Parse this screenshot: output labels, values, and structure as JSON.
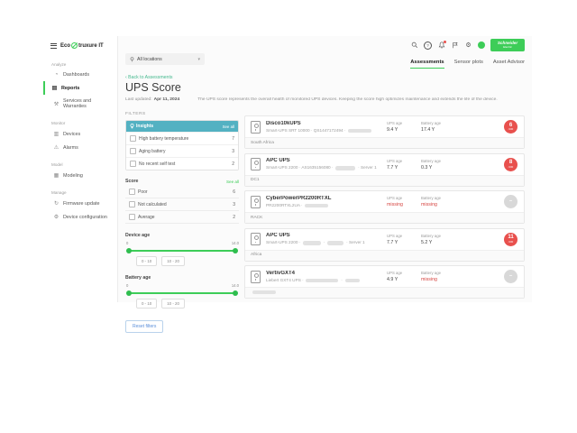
{
  "colors": {
    "accent": "#3dcd58",
    "insights_header": "#53b1c2",
    "badge_red": "#e8504d",
    "badge_gray": "#d8d8d8",
    "missing_text": "#d64541"
  },
  "brand": {
    "logo_pre": "Eco",
    "logo_post": "truxure IT",
    "vendor_line1": "Schneider",
    "vendor_line2": "Electric"
  },
  "sidebar": {
    "sections": [
      {
        "label": "Analyze",
        "items": [
          "Dashboards",
          "Reports",
          "Services and Warranties"
        ]
      },
      {
        "label": "Monitor",
        "items": [
          "Devices",
          "Alarms"
        ]
      },
      {
        "label": "Model",
        "items": [
          "Modeling"
        ]
      },
      {
        "label": "Manage",
        "items": [
          "Firmware update",
          "Device configuration"
        ]
      }
    ],
    "active_item": "Reports"
  },
  "topbar": {
    "location": "All locations",
    "icons": [
      "search-icon",
      "help-icon",
      "notifications-bell-icon",
      "feedback-icon",
      "settings-gear-icon",
      "avatar"
    ]
  },
  "tabs": [
    {
      "label": "Assessments",
      "active": true
    },
    {
      "label": "Sensor plots",
      "active": false
    },
    {
      "label": "Asset Advisor",
      "active": false
    }
  ],
  "page": {
    "back_link": "Back to Assessments",
    "title": "UPS Score",
    "last_updated_label": "Last updated:",
    "last_updated_value": "Apr 11, 2024",
    "description": "The UPS score represents the overall health of monitored UPS devices. Keeping the score high optimizes maintenance and extends the life of the device."
  },
  "filters": {
    "heading": "FILTERS",
    "see_all": "See all",
    "insights": {
      "title": "Insights",
      "items": [
        {
          "label": "High battery temperature",
          "count": "7"
        },
        {
          "label": "Aging battery",
          "count": "3"
        },
        {
          "label": "No recent self test",
          "count": "2"
        }
      ]
    },
    "score": {
      "title": "Score",
      "items": [
        {
          "label": "Poor",
          "count": "6"
        },
        {
          "label": "Not calculated",
          "count": "3"
        },
        {
          "label": "Average",
          "count": "2"
        }
      ]
    },
    "device_age": {
      "title": "Device age",
      "min": "0",
      "max": "14.0",
      "buttons": [
        "0 - 10",
        "10 - 20"
      ]
    },
    "battery_age": {
      "title": "Battery age",
      "min": "0",
      "max": "14.0",
      "buttons": [
        "0 - 10",
        "10 - 20"
      ]
    },
    "reset": "Reset filters"
  },
  "list": {
    "labels": {
      "ups_age": "UPS age",
      "battery_age": "Battery age"
    },
    "devices": [
      {
        "name": "Disco10kUPS",
        "subtitle_parts": [
          {
            "t": "Smart-UPS SRT 10000 · QS1447172494 · "
          },
          {
            "r": 26
          }
        ],
        "ups_age": "9.4 Y",
        "battery_age": "17.4 Y",
        "score": "6",
        "score_max": "/100",
        "footer": "South Africa"
      },
      {
        "name": "APC UPS",
        "subtitle_parts": [
          {
            "t": "Smart-UPS 2200 · AS1635156080 · "
          },
          {
            "r": 22
          },
          {
            "t": " · Server 1"
          }
        ],
        "ups_age": "7.7 Y",
        "battery_age": "0.3 Y",
        "score": "8",
        "score_max": "/100",
        "footer": "DC1"
      },
      {
        "name": "CyberPowerPR2200RTXL",
        "subtitle_parts": [
          {
            "t": "PR2200RTXL2UA · "
          },
          {
            "r": 26
          }
        ],
        "ups_age": "missing",
        "battery_age": "missing",
        "score": "–",
        "score_max": "",
        "footer": "RACK"
      },
      {
        "name": "APC UPS",
        "subtitle_parts": [
          {
            "t": "Smart-UPS 2200 · "
          },
          {
            "r": 20
          },
          {
            "t": " · "
          },
          {
            "r": 18
          },
          {
            "t": " · Server 1"
          }
        ],
        "ups_age": "7.7 Y",
        "battery_age": "5.2 Y",
        "score": "11",
        "score_max": "/100",
        "footer": "Africa"
      },
      {
        "name": "VertivGXT4",
        "subtitle_parts": [
          {
            "t": "Liebert GXT4 UPS · "
          },
          {
            "r": 36
          },
          {
            "t": " · "
          },
          {
            "r": 16
          }
        ],
        "ups_age": "4.9 Y",
        "battery_age": "missing",
        "score": "–",
        "score_max": "",
        "footer": ""
      }
    ]
  }
}
